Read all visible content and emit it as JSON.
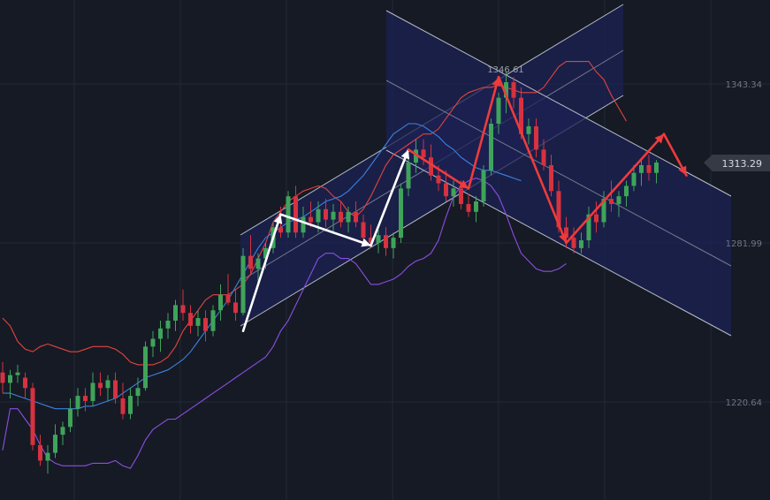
{
  "colors": {
    "background": "#161a25",
    "grid": "#232838",
    "up_candle": "#3fa45a",
    "down_candle": "#d6323f",
    "upper_band": "#e2443d",
    "middle_band": "#3b82e0",
    "lower_band": "#8b4fe0",
    "channel_fill": "#1c2253",
    "channel_line": "#b8bcc8",
    "white_arrow": "#ffffff",
    "red_arrow": "#ef3b3b",
    "price_tag_bg": "#363a45"
  },
  "chart_data": {
    "type": "candlestick",
    "title": "",
    "xlabel": "",
    "ylabel": "",
    "ylim": [
      1195,
      1378
    ],
    "grid": true,
    "y_ticks": [
      "1343.34",
      "1281.99",
      "1220.64"
    ],
    "y_tick_values": [
      1343.34,
      1281.99,
      1220.64
    ],
    "peak_label": "1346.61",
    "peak_value": 1346.61,
    "last_price": "1313.29",
    "last_price_value": 1313.29,
    "x_count": 100,
    "candles": [
      [
        1232,
        1236,
        1224,
        1228
      ],
      [
        1228,
        1233,
        1222,
        1231
      ],
      [
        1231,
        1235,
        1228,
        1232
      ],
      [
        1230,
        1232,
        1222,
        1226
      ],
      [
        1226,
        1228,
        1202,
        1204
      ],
      [
        1204,
        1208,
        1196,
        1198
      ],
      [
        1198,
        1204,
        1193,
        1201
      ],
      [
        1201,
        1212,
        1199,
        1208
      ],
      [
        1208,
        1213,
        1204,
        1211
      ],
      [
        1211,
        1222,
        1209,
        1218
      ],
      [
        1218,
        1226,
        1215,
        1223
      ],
      [
        1223,
        1226,
        1217,
        1221
      ],
      [
        1221,
        1232,
        1219,
        1228
      ],
      [
        1228,
        1232,
        1223,
        1226
      ],
      [
        1226,
        1231,
        1221,
        1229
      ],
      [
        1229,
        1232,
        1220,
        1222
      ],
      [
        1222,
        1228,
        1214,
        1216
      ],
      [
        1216,
        1226,
        1214,
        1223
      ],
      [
        1223,
        1230,
        1219,
        1226
      ],
      [
        1226,
        1244,
        1225,
        1242
      ],
      [
        1242,
        1248,
        1238,
        1245
      ],
      [
        1245,
        1252,
        1240,
        1249
      ],
      [
        1249,
        1255,
        1245,
        1252
      ],
      [
        1252,
        1260,
        1248,
        1258
      ],
      [
        1258,
        1264,
        1252,
        1255
      ],
      [
        1255,
        1258,
        1247,
        1250
      ],
      [
        1250,
        1256,
        1246,
        1253
      ],
      [
        1253,
        1256,
        1244,
        1248
      ],
      [
        1248,
        1258,
        1246,
        1256
      ],
      [
        1256,
        1266,
        1252,
        1262
      ],
      [
        1262,
        1270,
        1258,
        1259
      ],
      [
        1259,
        1264,
        1252,
        1255
      ],
      [
        1255,
        1280,
        1254,
        1277
      ],
      [
        1277,
        1285,
        1270,
        1272
      ],
      [
        1272,
        1278,
        1266,
        1276
      ],
      [
        1276,
        1282,
        1272,
        1280
      ],
      [
        1280,
        1290,
        1278,
        1288
      ],
      [
        1288,
        1296,
        1284,
        1286
      ],
      [
        1286,
        1302,
        1284,
        1300
      ],
      [
        1300,
        1304,
        1284,
        1286
      ],
      [
        1286,
        1296,
        1284,
        1292
      ],
      [
        1292,
        1298,
        1288,
        1290
      ],
      [
        1290,
        1298,
        1286,
        1295
      ],
      [
        1295,
        1299,
        1288,
        1291
      ],
      [
        1291,
        1297,
        1286,
        1294
      ],
      [
        1294,
        1298,
        1288,
        1290
      ],
      [
        1290,
        1296,
        1286,
        1294
      ],
      [
        1294,
        1298,
        1288,
        1290
      ],
      [
        1290,
        1293,
        1282,
        1284
      ],
      [
        1284,
        1289,
        1280,
        1282
      ],
      [
        1282,
        1287,
        1278,
        1285
      ],
      [
        1285,
        1288,
        1277,
        1280
      ],
      [
        1280,
        1286,
        1276,
        1284
      ],
      [
        1284,
        1305,
        1282,
        1303
      ],
      [
        1303,
        1315,
        1300,
        1313
      ],
      [
        1313,
        1322,
        1309,
        1318
      ],
      [
        1318,
        1322,
        1312,
        1315
      ],
      [
        1315,
        1320,
        1306,
        1308
      ],
      [
        1308,
        1312,
        1302,
        1305
      ],
      [
        1305,
        1310,
        1298,
        1300
      ],
      [
        1300,
        1306,
        1296,
        1303
      ],
      [
        1303,
        1306,
        1295,
        1297
      ],
      [
        1297,
        1301,
        1292,
        1294
      ],
      [
        1294,
        1300,
        1290,
        1298
      ],
      [
        1298,
        1312,
        1296,
        1310
      ],
      [
        1310,
        1330,
        1308,
        1328
      ],
      [
        1328,
        1340,
        1324,
        1338
      ],
      [
        1338,
        1348,
        1332,
        1344
      ],
      [
        1344,
        1346,
        1334,
        1338
      ],
      [
        1338,
        1342,
        1322,
        1324
      ],
      [
        1324,
        1330,
        1320,
        1327
      ],
      [
        1327,
        1330,
        1315,
        1318
      ],
      [
        1318,
        1322,
        1310,
        1312
      ],
      [
        1312,
        1316,
        1300,
        1302
      ],
      [
        1302,
        1306,
        1286,
        1288
      ],
      [
        1288,
        1292,
        1280,
        1284
      ],
      [
        1284,
        1288,
        1278,
        1280
      ],
      [
        1280,
        1286,
        1278,
        1283
      ],
      [
        1283,
        1296,
        1280,
        1293
      ],
      [
        1293,
        1298,
        1286,
        1290
      ],
      [
        1290,
        1302,
        1288,
        1299
      ],
      [
        1299,
        1306,
        1294,
        1297
      ],
      [
        1297,
        1302,
        1292,
        1300
      ],
      [
        1300,
        1306,
        1296,
        1304
      ],
      [
        1304,
        1312,
        1302,
        1309
      ],
      [
        1309,
        1314,
        1304,
        1312
      ],
      [
        1312,
        1316,
        1306,
        1309
      ],
      [
        1309,
        1314,
        1305,
        1313
      ]
    ],
    "series": [
      {
        "name": "",
        "color_key": "upper_band",
        "values": [
          1253,
          1250,
          1244,
          1241,
          1240,
          1242,
          1243,
          1242,
          1241,
          1240,
          1240,
          1241,
          1242,
          1242,
          1242,
          1241,
          1239,
          1236,
          1235,
          1235,
          1235,
          1236,
          1238,
          1242,
          1248,
          1252,
          1256,
          1260,
          1262,
          1262,
          1262,
          1264,
          1266,
          1270,
          1276,
          1282,
          1290,
          1294,
          1298,
          1300,
          1302,
          1303,
          1304,
          1303,
          1300,
          1298,
          1294,
          1292,
          1295,
          1300,
          1306,
          1312,
          1316,
          1318,
          1320,
          1322,
          1324,
          1324,
          1326,
          1330,
          1334,
          1338,
          1340,
          1341,
          1342,
          1342,
          1343,
          1342,
          1341,
          1340,
          1340,
          1340,
          1342,
          1346,
          1350,
          1352,
          1352,
          1352,
          1352,
          1348,
          1345,
          1339,
          1334,
          1329
        ]
      },
      {
        "name": "",
        "color_key": "middle_band",
        "values": [
          1224,
          1224,
          1223,
          1222,
          1221,
          1220,
          1219,
          1218,
          1218,
          1218,
          1218,
          1219,
          1219,
          1220,
          1221,
          1222,
          1224,
          1226,
          1228,
          1230,
          1231,
          1232,
          1233,
          1235,
          1237,
          1240,
          1244,
          1248,
          1252,
          1256,
          1260,
          1265,
          1270,
          1275,
          1280,
          1284,
          1286,
          1288,
          1290,
          1291,
          1292,
          1294,
          1296,
          1298,
          1299,
          1300,
          1302,
          1305,
          1308,
          1312,
          1316,
          1320,
          1324,
          1326,
          1328,
          1328,
          1327,
          1325,
          1323,
          1320,
          1318,
          1315,
          1313,
          1311,
          1310,
          1310,
          1309,
          1308,
          1307,
          1306
        ]
      },
      {
        "name": "",
        "color_key": "lower_band",
        "values": [
          1202,
          1218,
          1218,
          1214,
          1210,
          1204,
          1199,
          1197,
          1196,
          1196,
          1196,
          1196,
          1197,
          1197,
          1197,
          1198,
          1196,
          1195,
          1200,
          1206,
          1210,
          1212,
          1214,
          1214,
          1216,
          1218,
          1220,
          1222,
          1224,
          1226,
          1228,
          1230,
          1232,
          1234,
          1236,
          1238,
          1242,
          1248,
          1252,
          1258,
          1264,
          1270,
          1276,
          1278,
          1278,
          1276,
          1276,
          1274,
          1270,
          1266,
          1266,
          1267,
          1268,
          1270,
          1273,
          1275,
          1276,
          1278,
          1283,
          1292,
          1300,
          1304,
          1306,
          1307,
          1306,
          1304,
          1300,
          1293,
          1285,
          1278,
          1275,
          1272,
          1271,
          1271,
          1272,
          1274
        ]
      }
    ],
    "white_arrows": [
      [
        [
          1252,
          1308
        ],
        [
          1261,
          1337
        ]
      ],
      [
        [
          1261,
          1343
        ],
        [
          1281,
          1328
        ]
      ],
      [
        [
          1281,
          1334
        ],
        [
          1303,
          1378
        ]
      ]
    ],
    "red_arrows": [
      [
        [
          1303,
          1374
        ],
        [
          1315,
          1355
        ]
      ],
      [
        [
          1315,
          1361
        ],
        [
          1346,
          1412
        ]
      ],
      [
        [
          1346,
          1406
        ],
        [
          1280,
          1338
        ]
      ],
      [
        [
          1280,
          1343
        ],
        [
          1313,
          1403
        ]
      ],
      [
        [
          1313,
          1393
        ],
        [
          1306,
          1365
        ]
      ]
    ]
  }
}
